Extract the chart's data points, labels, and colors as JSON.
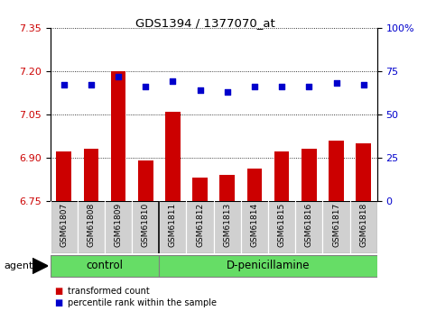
{
  "title": "GDS1394 / 1377070_at",
  "samples": [
    "GSM61807",
    "GSM61808",
    "GSM61809",
    "GSM61810",
    "GSM61811",
    "GSM61812",
    "GSM61813",
    "GSM61814",
    "GSM61815",
    "GSM61816",
    "GSM61817",
    "GSM61818"
  ],
  "transformed_count": [
    6.92,
    6.93,
    7.2,
    6.89,
    7.06,
    6.83,
    6.84,
    6.86,
    6.92,
    6.93,
    6.96,
    6.95
  ],
  "percentile_rank": [
    67,
    67,
    72,
    66,
    69,
    64,
    63,
    66,
    66,
    66,
    68,
    67
  ],
  "n_control": 4,
  "control_label": "control",
  "treatment_label": "D-penicillamine",
  "agent_label": "agent",
  "left_ylim": [
    6.75,
    7.35
  ],
  "right_ylim": [
    0,
    100
  ],
  "left_yticks": [
    6.75,
    6.9,
    7.05,
    7.2,
    7.35
  ],
  "right_yticks": [
    0,
    25,
    50,
    75,
    100
  ],
  "right_yticklabels": [
    "0",
    "25",
    "50",
    "75",
    "100%"
  ],
  "bar_color": "#cc0000",
  "dot_color": "#0000cc",
  "sample_bg": "#d0d0d0",
  "group_bg": "#66dd66",
  "legend_bar_label": "transformed count",
  "legend_dot_label": "percentile rank within the sample",
  "grid_color": "black",
  "left_tick_color": "#cc0000",
  "right_tick_color": "#0000cc"
}
